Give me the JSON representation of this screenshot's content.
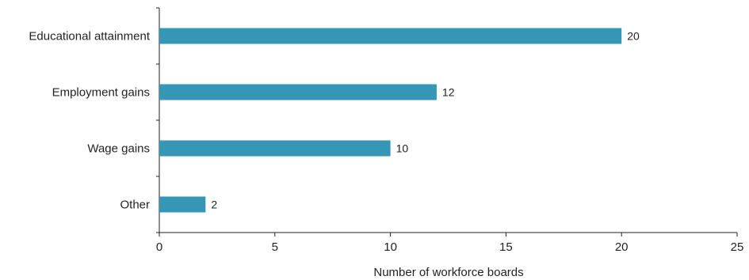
{
  "chart_data": {
    "type": "bar",
    "orientation": "horizontal",
    "categories": [
      "Educational attainment",
      "Employment gains",
      "Wage gains",
      "Other"
    ],
    "values": [
      20,
      12,
      10,
      2
    ],
    "data_labels": [
      "20",
      "12",
      "10",
      "2"
    ],
    "title": "",
    "xlabel": "Number of workforce boards",
    "ylabel": "",
    "xlim": [
      0,
      25
    ],
    "x_ticks": [
      0,
      5,
      10,
      15,
      20,
      25
    ],
    "x_tick_labels": [
      "0",
      "5",
      "10",
      "15",
      "20",
      "25"
    ],
    "grid": false,
    "legend": "none",
    "bar_color": "#3596b5",
    "axis_color": "#222222"
  }
}
